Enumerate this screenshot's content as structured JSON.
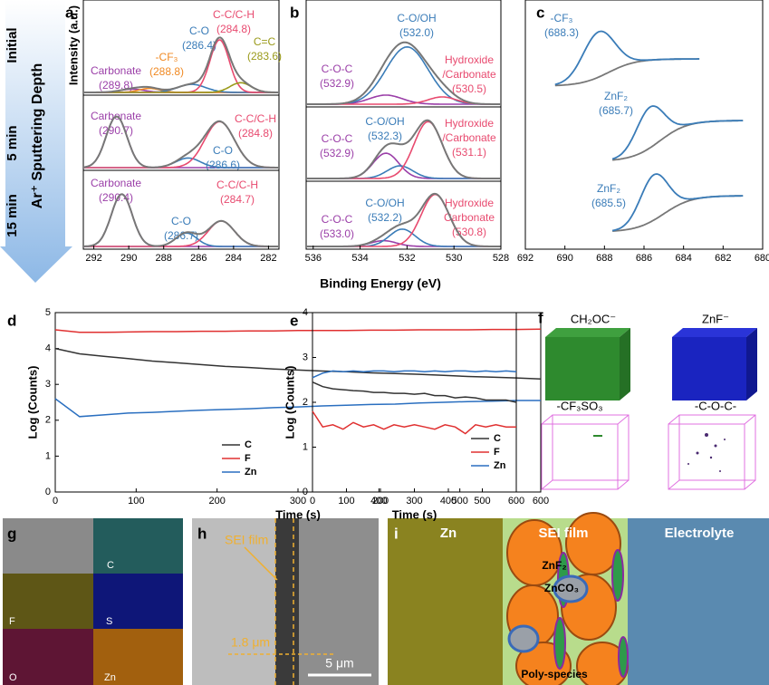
{
  "chart_data": [
    {
      "type": "xps",
      "panel": "a",
      "ylabel": "Intensity (a.u.)",
      "xlim": [
        292.6,
        281.4
      ],
      "xticks": [
        292,
        290,
        288,
        286,
        284,
        282
      ],
      "subplots": [
        {
          "peaks": [
            {
              "name": "Carbonate",
              "value": 289.8,
              "value_label": "(289.8)",
              "height": 0.04,
              "width": 0.7,
              "color": "#9b3fa8"
            },
            {
              "name": "-CF₃",
              "value": 288.8,
              "value_label": "(288.8)",
              "height": 0.05,
              "width": 0.6,
              "color": "#f08a24"
            },
            {
              "name": "C-O",
              "value": 286.4,
              "value_label": "(286.4)",
              "height": 0.1,
              "width": 0.8,
              "color": "#3a7cb8"
            },
            {
              "name": "C-C/C-H",
              "value": 284.8,
              "value_label": "(284.8)",
              "height": 0.65,
              "width": 0.55,
              "color": "#e84a6f"
            },
            {
              "name": "C=C",
              "value": 283.6,
              "value_label": "(283.6)",
              "height": 0.12,
              "width": 0.6,
              "color": "#9a9a1a"
            }
          ]
        },
        {
          "peaks": [
            {
              "name": "Carbonate",
              "value": 290.7,
              "value_label": "(290.7)",
              "height": 0.8,
              "width": 0.6,
              "color": "#9b3fa8"
            },
            {
              "name": "C-O",
              "value": 286.6,
              "value_label": "(286.6)",
              "height": 0.15,
              "width": 0.7,
              "color": "#3a7cb8"
            },
            {
              "name": "C-C/C-H",
              "value": 284.8,
              "value_label": "(284.8)",
              "height": 0.72,
              "width": 0.85,
              "color": "#e84a6f"
            }
          ]
        },
        {
          "peaks": [
            {
              "name": "Carbonate",
              "value": 290.4,
              "value_label": "(290.4)",
              "height": 0.78,
              "width": 0.6,
              "color": "#9b3fa8"
            },
            {
              "name": "C-O",
              "value": 286.7,
              "value_label": "(286.7)",
              "height": 0.2,
              "width": 0.6,
              "color": "#3a7cb8"
            },
            {
              "name": "C-C/C-H",
              "value": 284.7,
              "value_label": "(284.7)",
              "height": 0.38,
              "width": 0.75,
              "color": "#e84a6f"
            }
          ]
        }
      ]
    },
    {
      "type": "xps",
      "panel": "b",
      "xlim": [
        536.3,
        528
      ],
      "xticks": [
        536,
        534,
        532,
        530,
        528
      ],
      "subplots": [
        {
          "peaks": [
            {
              "name": "C-O-C",
              "value": 532.9,
              "value_label": "(532.9)",
              "height": 0.1,
              "width": 0.7,
              "color": "#9b3fa8"
            },
            {
              "name": "C-O/OH",
              "value": 532.0,
              "value_label": "(532.0)",
              "height": 0.63,
              "width": 0.9,
              "color": "#3a7cb8"
            },
            {
              "name": [
                "Hydroxide",
                "/Carbonate"
              ],
              "value": 530.5,
              "value_label": "(530.5)",
              "height": 0.08,
              "width": 0.6,
              "color": "#e84a6f"
            }
          ]
        },
        {
          "peaks": [
            {
              "name": "C-O-C",
              "value": 532.9,
              "value_label": "(532.9)",
              "height": 0.4,
              "width": 0.55,
              "color": "#9b3fa8"
            },
            {
              "name": "C-O/OH",
              "value": 532.3,
              "value_label": "(532.3)",
              "height": 0.2,
              "width": 0.55,
              "color": "#3a7cb8"
            },
            {
              "name": [
                "Hydroxide",
                "/Carbonate"
              ],
              "value": 531.1,
              "value_label": "(531.1)",
              "height": 0.9,
              "width": 0.6,
              "color": "#e84a6f"
            }
          ]
        },
        {
          "peaks": [
            {
              "name": "C-O-C",
              "value": 533.0,
              "value_label": "(533.0)",
              "height": 0.1,
              "width": 0.55,
              "color": "#9b3fa8"
            },
            {
              "name": "C-O/OH",
              "value": 532.2,
              "value_label": "(532.2)",
              "height": 0.3,
              "width": 0.55,
              "color": "#3a7cb8"
            },
            {
              "name": [
                "Hydroxide",
                "Carbonate"
              ],
              "value": 530.8,
              "value_label": "(530.8)",
              "height": 0.9,
              "width": 0.6,
              "color": "#e84a6f"
            }
          ]
        }
      ]
    },
    {
      "type": "xps-stack",
      "panel": "c",
      "xlim": [
        692,
        680
      ],
      "xticks": [
        692,
        690,
        688,
        686,
        684,
        682,
        680
      ],
      "curves": [
        {
          "name": "-CF₃",
          "value": 688.3,
          "value_label": "(688.3)",
          "height": 0.5,
          "width": 0.8,
          "step": 0.3,
          "range": [
            690.5,
            683.2
          ],
          "color": "#3a7cb8"
        },
        {
          "name": "ZnF₂",
          "value": 685.7,
          "value_label": "(685.7)",
          "height": 0.45,
          "width": 0.7,
          "step": 0.45,
          "range": [
            687.6,
            681.0
          ],
          "color": "#3a7cb8"
        },
        {
          "name": "ZnF₂",
          "value": 685.5,
          "value_label": "(685.5)",
          "height": 0.5,
          "width": 0.7,
          "step": 0.4,
          "range": [
            687.6,
            681.0
          ],
          "color": "#3a7cb8"
        }
      ]
    },
    {
      "type": "line",
      "panel": "d",
      "xlabel": "Time (s)",
      "ylabel": "Log (Counts)",
      "xlim": [
        0,
        600
      ],
      "xticks": [
        0,
        100,
        200,
        300,
        400,
        500,
        600
      ],
      "ylim": [
        0,
        5
      ],
      "yticks": [
        0,
        1,
        2,
        3,
        4,
        5
      ],
      "x": [
        0,
        30,
        60,
        90,
        120,
        150,
        180,
        210,
        240,
        270,
        300,
        330,
        360,
        390,
        420,
        450,
        480,
        510,
        540,
        570,
        600
      ],
      "series": [
        {
          "name": "C",
          "color": "#333333",
          "values": [
            4.0,
            3.85,
            3.78,
            3.72,
            3.65,
            3.6,
            3.55,
            3.5,
            3.47,
            3.43,
            3.4,
            3.37,
            3.35,
            3.32,
            3.3,
            3.28,
            3.25,
            3.22,
            3.2,
            3.18,
            3.15
          ]
        },
        {
          "name": "F",
          "color": "#e03030",
          "values": [
            4.52,
            4.45,
            4.45,
            4.46,
            4.47,
            4.47,
            4.48,
            4.48,
            4.49,
            4.49,
            4.5,
            4.5,
            4.5,
            4.51,
            4.51,
            4.52,
            4.52,
            4.52,
            4.53,
            4.53,
            4.54
          ]
        },
        {
          "name": "Zn",
          "color": "#2a6fc0",
          "values": [
            2.6,
            2.1,
            2.15,
            2.2,
            2.22,
            2.25,
            2.28,
            2.3,
            2.32,
            2.35,
            2.37,
            2.4,
            2.42,
            2.44,
            2.45,
            2.48,
            2.5,
            2.52,
            2.53,
            2.55,
            2.55
          ]
        }
      ]
    },
    {
      "type": "line",
      "panel": "e",
      "xlabel": "Time (s)",
      "ylabel": "Log (Counts)",
      "xlim": [
        0,
        600
      ],
      "xticks": [
        0,
        100,
        200,
        300,
        400,
        500,
        600
      ],
      "ylim": [
        0,
        4
      ],
      "yticks": [
        0,
        1,
        2,
        3,
        4
      ],
      "x": [
        0,
        30,
        60,
        90,
        120,
        150,
        180,
        210,
        240,
        270,
        300,
        330,
        360,
        390,
        420,
        450,
        480,
        510,
        540,
        570,
        600
      ],
      "series": [
        {
          "name": "C",
          "color": "#333333",
          "values": [
            2.45,
            2.35,
            2.3,
            2.28,
            2.26,
            2.25,
            2.22,
            2.22,
            2.2,
            2.2,
            2.18,
            2.2,
            2.15,
            2.15,
            2.1,
            2.12,
            2.1,
            2.05,
            2.05,
            2.05,
            2.0
          ]
        },
        {
          "name": "F",
          "color": "#e03030",
          "values": [
            1.8,
            1.45,
            1.5,
            1.4,
            1.55,
            1.45,
            1.5,
            1.4,
            1.5,
            1.45,
            1.5,
            1.45,
            1.4,
            1.5,
            1.45,
            1.3,
            1.5,
            1.45,
            1.5,
            1.45,
            1.45
          ]
        },
        {
          "name": "Zn",
          "color": "#2a6fc0",
          "values": [
            2.55,
            2.65,
            2.7,
            2.68,
            2.7,
            2.68,
            2.7,
            2.7,
            2.68,
            2.7,
            2.7,
            2.68,
            2.7,
            2.68,
            2.7,
            2.7,
            2.68,
            2.7,
            2.68,
            2.7,
            2.68
          ]
        }
      ]
    }
  ],
  "shared_xlabel": "Binding Energy (eV)",
  "sputtering": {
    "title": "Ar⁺ Sputtering Depth",
    "stages": [
      "Initial",
      "5 min",
      "15 min"
    ]
  },
  "images": {
    "f": {
      "panel": "f",
      "labels": [
        "CH₂OC⁻",
        "ZnF⁻",
        "-CF₃SO₃",
        "-C-O-C-"
      ]
    },
    "g": {
      "panel": "g",
      "labels": [
        "C",
        "F",
        "S",
        "O",
        "Zn"
      ]
    },
    "h": {
      "panel": "h",
      "labels": [
        "SEI film",
        "1.8 μm",
        "5 μm"
      ]
    },
    "i": {
      "panel": "i",
      "labels": [
        "Zn",
        "SEI film",
        "ZnF₂",
        "ZnCO₃",
        "Poly-species",
        "Electrolyte"
      ]
    }
  }
}
